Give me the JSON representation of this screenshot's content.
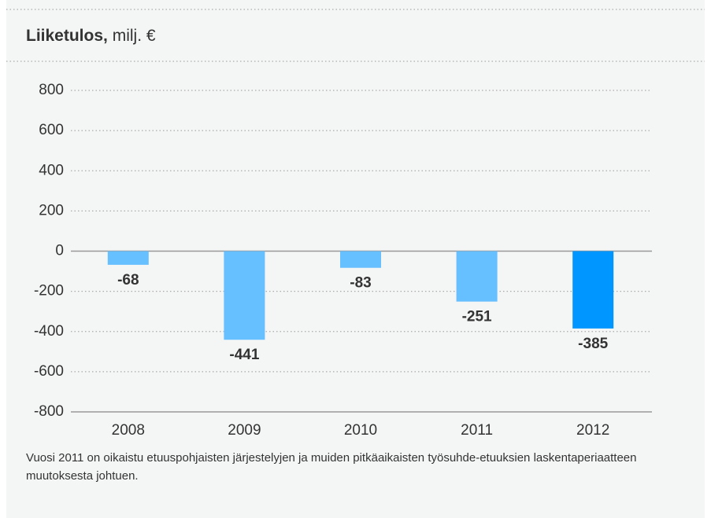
{
  "chart_data": {
    "type": "bar",
    "title": "Liiketulos,",
    "subtitle": "milj. €",
    "categories": [
      "2008",
      "2009",
      "2010",
      "2011",
      "2012"
    ],
    "values": [
      -68,
      -441,
      -83,
      -251,
      -385
    ],
    "colors": [
      "#66bfff",
      "#66bfff",
      "#66bfff",
      "#66bfff",
      "#0096ff"
    ],
    "ylim": [
      -800,
      800
    ],
    "yticks": [
      -800,
      -600,
      -400,
      -200,
      0,
      200,
      400,
      600,
      800
    ],
    "grid": true,
    "note": "Vuosi 2011 on oikaistu etuuspohjaisten järjestelyjen ja muiden pitkäaikaisten työsuhde-etuuksien laskentaperiaatteen muutoksesta johtuen."
  }
}
